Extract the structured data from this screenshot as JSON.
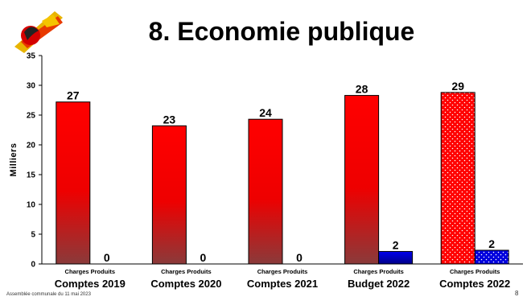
{
  "header": {
    "title": "8. Economie publique"
  },
  "footer": {
    "text": "Assemblée communale du 11 mai 2023",
    "page": "8"
  },
  "chart_data": {
    "type": "bar",
    "ylabel": "Milliers",
    "ylim": [
      0,
      35
    ],
    "yticks": [
      0,
      5,
      10,
      15,
      20,
      25,
      30,
      35
    ],
    "grid": false,
    "legend": "none",
    "groups": [
      "Comptes 2019",
      "Comptes 2020",
      "Comptes 2021",
      "Budget 2022",
      "Comptes 2022"
    ],
    "sub_labels": [
      "Charges Produits",
      "Charges Produits",
      "Charges Produits",
      "Charges Produits",
      "Charges Produits"
    ],
    "series": [
      {
        "values": [
          27.2,
          23.2,
          24.3,
          28.3,
          28.8
        ],
        "labels": [
          "27",
          "23",
          "24",
          "28",
          "29"
        ],
        "color": "#ff0000"
      },
      {
        "values": [
          0,
          0,
          0,
          2.1,
          2.3
        ],
        "labels": [
          "0",
          "0",
          "0",
          "2",
          "2"
        ],
        "color": "#0000cc"
      }
    ],
    "patterned_groups": [
      4
    ]
  }
}
